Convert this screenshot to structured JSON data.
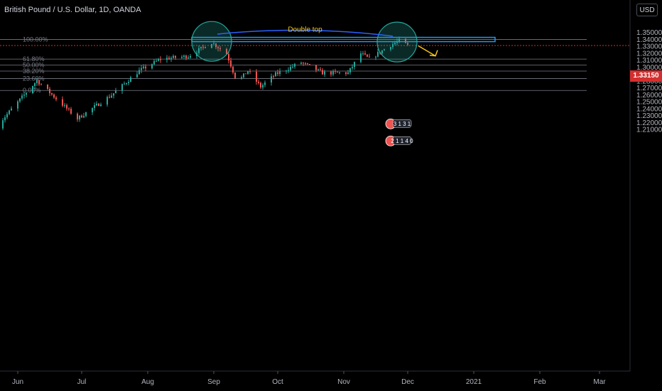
{
  "header": {
    "title": "British Pound / U.S. Dollar, 1D, OANDA",
    "currency_badge": "USD"
  },
  "price_axis": {
    "current_price": "1.33150",
    "current_price_color": "#d32f2f"
  },
  "annotations": {
    "pattern_label": "Double top",
    "pattern_label_color": "#f5c518",
    "arc_color": "#2962ff",
    "arrow_color": "#f5c518",
    "circle_color": "#26a69a",
    "neckline_color": "#2196f3",
    "event_badges": [
      {
        "label": "3 1 3 1"
      },
      {
        "label": "2 1 1 4 0"
      }
    ]
  },
  "chart_data": {
    "type": "candlestick",
    "title": "British Pound / U.S. Dollar, 1D, OANDA",
    "ylim": [
      1.2,
      1.36
    ],
    "yticks": [
      "1.35000",
      "1.34000",
      "1.33000",
      "1.32000",
      "1.31000",
      "1.30000",
      "1.29000",
      "1.28000",
      "1.27000",
      "1.26000",
      "1.25000",
      "1.24000",
      "1.23000",
      "1.22000",
      "1.21000"
    ],
    "xticks": [
      "Jun",
      "Jul",
      "Aug",
      "Sep",
      "Oct",
      "Nov",
      "Dec",
      "2021",
      "Feb",
      "Mar"
    ],
    "x_range": [
      "2020-05-20",
      "2021-03-01"
    ],
    "up_color": "#26a69a",
    "down_color": "#ef5350",
    "current_price": 1.3315,
    "fibonacci": [
      {
        "label": "100.00%",
        "price": 1.3402
      },
      {
        "label": "61.80%",
        "price": 1.3119
      },
      {
        "label": "50.00%",
        "price": 1.3033
      },
      {
        "label": "38.20%",
        "price": 1.2946
      },
      {
        "label": "23.60%",
        "price": 1.2839
      },
      {
        "label": "0.00%",
        "price": 1.2667
      }
    ],
    "anchors": [
      {
        "date": "2020-05-22",
        "price": 1.215
      },
      {
        "date": "2020-06-10",
        "price": 1.281
      },
      {
        "date": "2020-06-29",
        "price": 1.226
      },
      {
        "date": "2020-07-15",
        "price": 1.26
      },
      {
        "date": "2020-07-28",
        "price": 1.295
      },
      {
        "date": "2020-08-07",
        "price": 1.312
      },
      {
        "date": "2020-08-20",
        "price": 1.316
      },
      {
        "date": "2020-08-31",
        "price": 1.336
      },
      {
        "date": "2020-09-07",
        "price": 1.32
      },
      {
        "date": "2020-09-12",
        "price": 1.278
      },
      {
        "date": "2020-09-17",
        "price": 1.295
      },
      {
        "date": "2020-09-23",
        "price": 1.272
      },
      {
        "date": "2020-09-30",
        "price": 1.29
      },
      {
        "date": "2020-10-12",
        "price": 1.307
      },
      {
        "date": "2020-10-22",
        "price": 1.292
      },
      {
        "date": "2020-10-30",
        "price": 1.292
      },
      {
        "date": "2020-11-03",
        "price": 1.292
      },
      {
        "date": "2020-11-09",
        "price": 1.32
      },
      {
        "date": "2020-11-13",
        "price": 1.312
      },
      {
        "date": "2020-11-23",
        "price": 1.332
      },
      {
        "date": "2020-11-27",
        "price": 1.3385
      },
      {
        "date": "2020-12-01",
        "price": 1.3315
      }
    ]
  }
}
